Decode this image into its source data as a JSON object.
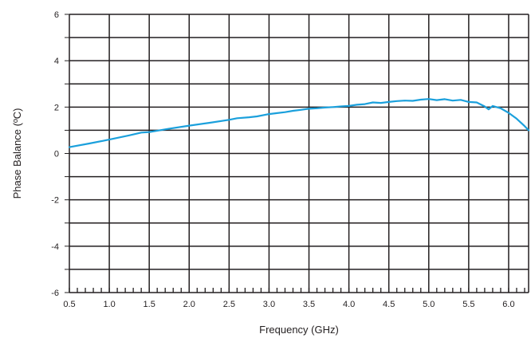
{
  "chart_data": {
    "type": "line",
    "title": "",
    "xlabel": "Frequency (GHz)",
    "ylabel": "Phase Balance (ºC)",
    "xlim": [
      0.5,
      6.25
    ],
    "ylim": [
      -6,
      6
    ],
    "grid": true,
    "x_ticks": [
      0.5,
      1.0,
      1.5,
      2.0,
      2.5,
      3.0,
      3.5,
      4.0,
      4.5,
      5.0,
      5.5,
      6.0
    ],
    "x_tick_labels": [
      "0.5",
      "1.0",
      "1.5",
      "2.0",
      "2.5",
      "3.0",
      "3.5",
      "4.0",
      "4.5",
      "5.0",
      "5.5",
      "6.0"
    ],
    "y_ticks": [
      -6,
      -4,
      -2,
      0,
      2,
      4,
      6
    ],
    "y_tick_labels": [
      "-6",
      "-4",
      "-2",
      "0",
      "2",
      "4",
      "6"
    ],
    "line_color": "#1ba0dc",
    "series": [
      {
        "x": [
          0.5,
          0.75,
          1.0,
          1.25,
          1.4,
          1.5,
          1.75,
          2.0,
          2.25,
          2.5,
          2.6,
          2.75,
          2.85,
          3.0,
          3.1,
          3.2,
          3.3,
          3.4,
          3.5,
          3.6,
          3.7,
          3.8,
          3.9,
          4.0,
          4.1,
          4.2,
          4.3,
          4.4,
          4.5,
          4.6,
          4.7,
          4.8,
          4.9,
          5.0,
          5.1,
          5.2,
          5.3,
          5.4,
          5.5,
          5.6,
          5.7,
          5.75,
          5.8,
          5.9,
          6.0,
          6.1,
          6.2,
          6.25
        ],
        "y": [
          0.27,
          0.43,
          0.6,
          0.78,
          0.9,
          0.92,
          1.07,
          1.2,
          1.32,
          1.45,
          1.52,
          1.56,
          1.6,
          1.7,
          1.74,
          1.78,
          1.84,
          1.88,
          1.93,
          1.95,
          1.98,
          2.0,
          2.03,
          2.05,
          2.1,
          2.13,
          2.2,
          2.18,
          2.22,
          2.26,
          2.28,
          2.27,
          2.32,
          2.35,
          2.3,
          2.34,
          2.28,
          2.31,
          2.22,
          2.2,
          2.03,
          1.9,
          2.05,
          1.95,
          1.75,
          1.5,
          1.18,
          1.0
        ]
      }
    ]
  }
}
